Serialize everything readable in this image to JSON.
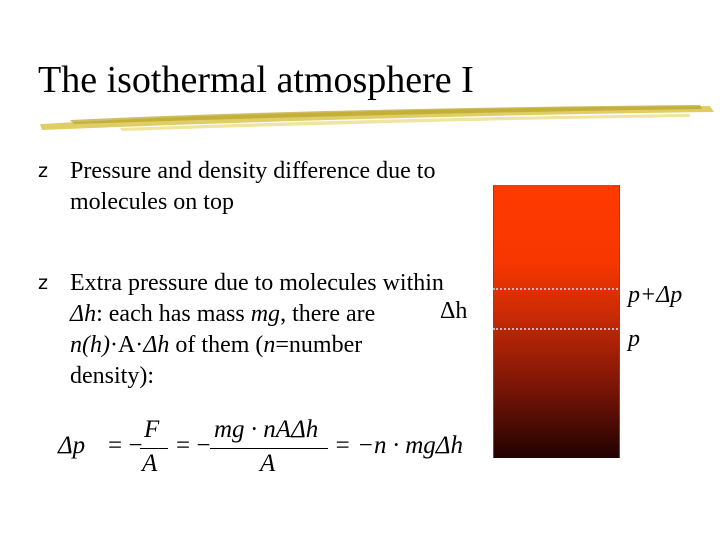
{
  "slide": {
    "title": "The isothermal atmosphere I",
    "bullet_marker": "z",
    "bullet1": "Pressure and density difference due to molecules on top",
    "bullet2": {
      "part1": "Extra pressure due to molecules within ",
      "delta_h": "Δh",
      "part2": ": each has mass ",
      "mg": "mg",
      "part3": ", there are ",
      "nh": "n(h)",
      "part4": "·A·",
      "dh2": "Δh",
      "part5": " of them (",
      "n": "n",
      "part6": "=number density):"
    }
  },
  "diagram": {
    "delta_h_label": "Δh",
    "p_plus_dp_label": "p+Δp",
    "p_label": "p",
    "top_color": "#ff3a00",
    "bottom_color": "#220201"
  },
  "equation": {
    "dp": "Δp",
    "eq1": "= −",
    "F": "F",
    "A1": "A",
    "eq2": "= −",
    "num": "mg · nAΔh",
    "A2": "A",
    "eq3": "= −n · mgΔh"
  }
}
